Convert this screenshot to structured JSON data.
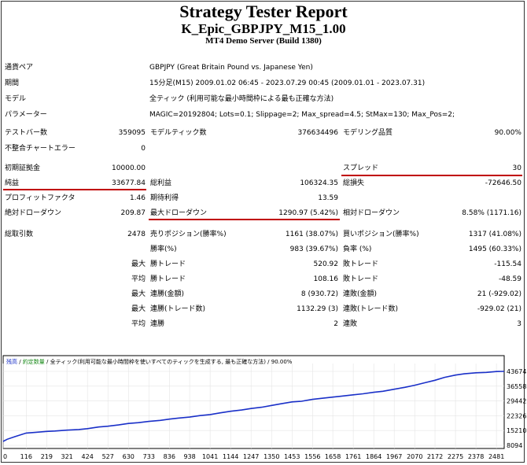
{
  "header": {
    "title": "Strategy Tester Report",
    "strategy": "K_Epic_GBPJPY_M15_1.00",
    "server": "MT4 Demo Server (Build 1380)"
  },
  "info": {
    "symbol_label": "通貨ペア",
    "symbol_value": "GBPJPY (Great Britain Pound vs. Japanese Yen)",
    "period_label": "期間",
    "period_value": "15分足(M15) 2009.01.02 06:45 - 2023.07.29 00:45 (2009.01.01 - 2023.07.31)",
    "model_label": "モデル",
    "model_value": "全ティック (利用可能な最小時間枠による最も正確な方法)",
    "params_label": "パラメーター",
    "params_value": "MAGIC=20192804; Lots=0.1; Slippage=2; Max_spread=4.5; StMax=130; Max_Pos=2;"
  },
  "stats": {
    "bars_label": "テストバー数",
    "bars_value": "359095",
    "ticks_label": "モデルティック数",
    "ticks_value": "376634496",
    "quality_label": "モデリング品質",
    "quality_value": "90.00%",
    "mismatch_label": "不整合チャートエラー",
    "mismatch_value": "0",
    "deposit_label": "初期証拠金",
    "deposit_value": "10000.00",
    "spread_label": "スプレッド",
    "spread_value": "30",
    "netprofit_label": "純益",
    "netprofit_value": "33677.84",
    "grossprofit_label": "総利益",
    "grossprofit_value": "106324.35",
    "grossloss_label": "総損失",
    "grossloss_value": "-72646.50",
    "pf_label": "プロフィットファクタ",
    "pf_value": "1.46",
    "expected_label": "期待利得",
    "expected_value": "13.59",
    "absdd_label": "絶対ドローダウン",
    "absdd_value": "209.87",
    "maxdd_label": "最大ドローダウン",
    "maxdd_value": "1290.97 (5.42%)",
    "reldd_label": "相対ドローダウン",
    "reldd_value": "8.58% (1171.16)",
    "trades_label": "総取引数",
    "trades_value": "2478",
    "short_label": "売りポジション(勝率%)",
    "short_value": "1161 (38.07%)",
    "long_label": "買いポジション(勝率%)",
    "long_value": "1317 (41.08%)",
    "winrate_label": "勝率(%)",
    "winrate_value": "983 (39.67%)",
    "lossrate_label": "負率 (%)",
    "lossrate_value": "1495 (60.33%)",
    "max_label": "最大",
    "avg_label": "平均",
    "largest_win_label": "勝トレード",
    "largest_win_value": "520.92",
    "largest_loss_label": "敗トレード",
    "largest_loss_value": "-115.54",
    "avg_win_label": "勝トレード",
    "avg_win_value": "108.16",
    "avg_loss_label": "敗トレード",
    "avg_loss_value": "-48.59",
    "consec_wins_money_label": "連勝(金額)",
    "consec_wins_money_value": "8 (930.72)",
    "consec_loss_money_label": "連敗(金額)",
    "consec_loss_money_value": "21 (-929.02)",
    "consec_profit_label": "連勝(トレード数)",
    "consec_profit_value": "1132.29 (3)",
    "consec_lossamt_label": "連敗(トレード数)",
    "consec_lossamt_value": "-929.02 (21)",
    "avg_consec_wins_label": "連勝",
    "avg_consec_wins_value": "2",
    "avg_consec_losses_label": "連敗",
    "avg_consec_losses_value": "3"
  },
  "chart_data": {
    "type": "line",
    "legend": {
      "balance": "残高",
      "sep1": " / ",
      "lots": "約定数量",
      "sep2": " / ",
      "model": "全ティック(利用可能な最小時間枠を使いすべてのティックを生成する, 最も正確な方法)",
      "sep3": " / ",
      "quality": "90.00%"
    },
    "x_ticks": [
      "0",
      "116",
      "219",
      "321",
      "424",
      "527",
      "630",
      "733",
      "836",
      "938",
      "1041",
      "1144",
      "1247",
      "1350",
      "1453",
      "1556",
      "1658",
      "1761",
      "1864",
      "1967",
      "2070",
      "2172",
      "2275",
      "2378",
      "2481"
    ],
    "y_ticks": [
      "43674",
      "36558",
      "29442",
      "22326",
      "15210",
      "8094"
    ],
    "xlim": [
      0,
      2520
    ],
    "ylim": [
      8094,
      43674
    ],
    "series": [
      {
        "x": [
          0,
          20,
          60,
          116,
          160,
          219,
          260,
          321,
          380,
          424,
          480,
          527,
          580,
          630,
          680,
          733,
          790,
          836,
          880,
          938,
          990,
          1041,
          1090,
          1144,
          1200,
          1247,
          1300,
          1350,
          1400,
          1453,
          1500,
          1556,
          1600,
          1658,
          1700,
          1761,
          1810,
          1864,
          1910,
          1967,
          2020,
          2070,
          2120,
          2172,
          2220,
          2275,
          2320,
          2378,
          2430,
          2481,
          2520
        ],
        "y": [
          10000,
          11000,
          12300,
          14000,
          14300,
          14800,
          15000,
          15400,
          15700,
          16100,
          16900,
          17300,
          17900,
          18600,
          19000,
          19600,
          20100,
          20700,
          21200,
          21700,
          22400,
          22900,
          23700,
          24500,
          25100,
          25800,
          26400,
          27300,
          28100,
          29000,
          29300,
          30200,
          30700,
          31300,
          31700,
          32400,
          32900,
          33600,
          34100,
          35100,
          36000,
          37000,
          38200,
          39400,
          40800,
          41900,
          42500,
          43000,
          43200,
          43600,
          43678
        ]
      }
    ]
  }
}
